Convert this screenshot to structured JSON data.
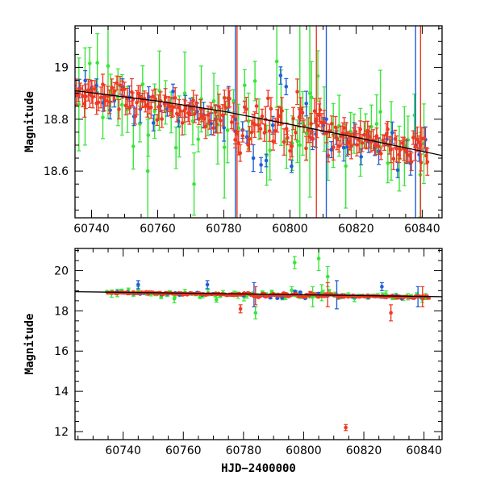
{
  "colors": {
    "green": "#39e639",
    "blue": "#1f5fdc",
    "red": "#ee3a22",
    "fit": "#000000"
  },
  "chart_data": [
    {
      "type": "scatter",
      "panel": "top",
      "xlim": [
        60735,
        60846
      ],
      "ylim": [
        19.16,
        18.42
      ],
      "inverted_y": true,
      "xticks": [
        60740,
        60760,
        60780,
        60800,
        60820,
        60840
      ],
      "yticks": [
        18.6,
        18.8,
        19
      ],
      "xlabel": "",
      "ylabel": "Magnitude",
      "fit_line": [
        [
          60735,
          18.91
        ],
        [
          60760,
          18.87
        ],
        [
          60780,
          18.83
        ],
        [
          60800,
          18.78
        ],
        [
          60820,
          18.73
        ],
        [
          60846,
          18.66
        ]
      ]
    },
    {
      "type": "scatter",
      "panel": "bottom",
      "xlim": [
        60724,
        60846
      ],
      "ylim": [
        21.1,
        11.6
      ],
      "inverted_y": true,
      "xticks": [
        60740,
        60760,
        60780,
        60800,
        60820,
        60840
      ],
      "yticks": [
        12,
        14,
        16,
        18,
        20
      ],
      "xlabel": "HJD−2400000",
      "ylabel": "Magnitude",
      "fit_line": [
        [
          60724,
          18.95
        ],
        [
          60760,
          18.88
        ],
        [
          60800,
          18.8
        ],
        [
          60846,
          18.7
        ]
      ],
      "outliers": [
        {
          "series": "red",
          "x": 60814,
          "y": 12.2,
          "err": 0.15
        },
        {
          "series": "red",
          "x": 60829,
          "y": 17.9,
          "err": 0.4
        },
        {
          "series": "red",
          "x": 60779,
          "y": 18.1,
          "err": 0.2
        },
        {
          "series": "green",
          "x": 60805,
          "y": 20.6,
          "err": 0.6
        },
        {
          "series": "green",
          "x": 60797,
          "y": 20.4,
          "err": 0.3
        },
        {
          "series": "green",
          "x": 60784,
          "y": 17.9,
          "err": 0.3
        },
        {
          "series": "green",
          "x": 60808,
          "y": 19.7,
          "err": 0.5
        },
        {
          "series": "blue",
          "x": 60745,
          "y": 19.3,
          "err": 0.2
        },
        {
          "series": "blue",
          "x": 60768,
          "y": 19.3,
          "err": 0.2
        },
        {
          "series": "blue",
          "x": 60826,
          "y": 19.2,
          "err": 0.2
        }
      ]
    }
  ],
  "series": [
    {
      "name": "green",
      "start": 60735,
      "end": 60842,
      "step": 1.6,
      "err": 0.06,
      "scatter": 0.08
    },
    {
      "name": "blue",
      "start": 60736,
      "end": 60842,
      "step": 1.9,
      "err": 0.035,
      "scatter": 0.04
    },
    {
      "name": "red",
      "start": 60735,
      "end": 60842,
      "step": 0.55,
      "err": 0.035,
      "scatter": 0.03
    }
  ],
  "notes": "Series are dense photometric light-curve points with error bars; values generated from a linear trend plus deterministic scatter."
}
